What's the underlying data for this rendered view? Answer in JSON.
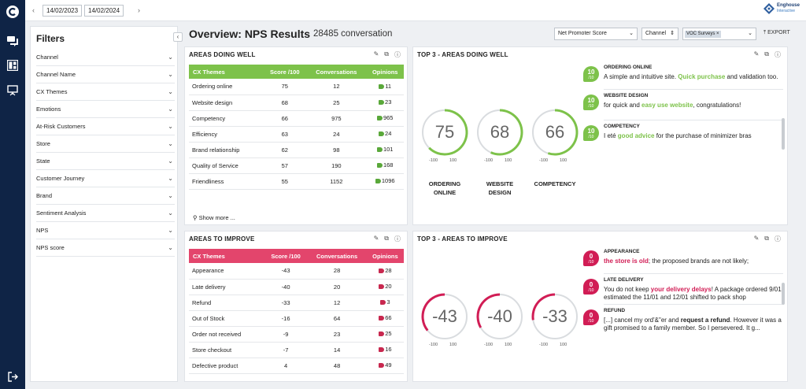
{
  "topbar": {
    "date_from": "14/02/2023",
    "date_to": "14/02/2024",
    "prev_icon": "chevron-left-icon",
    "next_icon": "chevron-right-icon",
    "brand_name": "Enghouse",
    "brand_sub": "Interactive"
  },
  "nav": {
    "items": [
      "app-logo-icon",
      "chat-icon",
      "dashboard-icon",
      "presentation-icon",
      "logout-icon"
    ]
  },
  "filters": {
    "title": "Filters",
    "collapse_glyph": "‹",
    "items": [
      "Channel",
      "Channel Name",
      "CX Themes",
      "Emotions",
      "At-Risk Customers",
      "Store",
      "State",
      "Customer Journey",
      "Brand",
      "Sentiment Analysis",
      "NPS",
      "NPS score"
    ]
  },
  "header": {
    "title": "Overview: NPS Results",
    "count": "28485 conversation",
    "metric_select": "Net Promoter Score",
    "channel_select": "Channel",
    "source_tag": "VOC Surveys",
    "export_label": "EXPORT"
  },
  "doing_well": {
    "title": "AREAS DOING WELL",
    "columns": [
      "CX Themes",
      "Score /100",
      "Conversations",
      "Opinions"
    ],
    "rows": [
      {
        "theme": "Ordering online",
        "score": "75",
        "conv": "12",
        "op": "11"
      },
      {
        "theme": "Website design",
        "score": "68",
        "conv": "25",
        "op": "23"
      },
      {
        "theme": "Competency",
        "score": "66",
        "conv": "975",
        "op": "965"
      },
      {
        "theme": "Efficiency",
        "score": "63",
        "conv": "24",
        "op": "24"
      },
      {
        "theme": "Brand relationship",
        "score": "62",
        "conv": "98",
        "op": "101"
      },
      {
        "theme": "Quality of Service",
        "score": "57",
        "conv": "190",
        "op": "168"
      },
      {
        "theme": "Friendliness",
        "score": "55",
        "conv": "1152",
        "op": "1096"
      }
    ],
    "show_more": "Show more ..."
  },
  "to_improve": {
    "title": "AREAS TO IMPROVE",
    "columns": [
      "CX Themes",
      "Score /100",
      "Conversations",
      "Opinions"
    ],
    "rows": [
      {
        "theme": "Appearance",
        "score": "-43",
        "conv": "28",
        "op": "28"
      },
      {
        "theme": "Late delivery",
        "score": "-40",
        "conv": "20",
        "op": "20"
      },
      {
        "theme": "Refund",
        "score": "-33",
        "conv": "12",
        "op": "3"
      },
      {
        "theme": "Out of Stock",
        "score": "-16",
        "conv": "64",
        "op": "66"
      },
      {
        "theme": "Order not received",
        "score": "-9",
        "conv": "23",
        "op": "25"
      },
      {
        "theme": "Store checkout",
        "score": "-7",
        "conv": "14",
        "op": "16"
      },
      {
        "theme": "Defective product",
        "score": "4",
        "conv": "48",
        "op": "49"
      }
    ]
  },
  "top3_well": {
    "title": "TOP 3 - AREAS DOING WELL",
    "gauges": [
      {
        "value": "75",
        "num": 75,
        "min": "-100",
        "max": "100",
        "label": "ORDERING ONLINE"
      },
      {
        "value": "68",
        "num": 68,
        "min": "-100",
        "max": "100",
        "label": "WEBSITE DESIGN"
      },
      {
        "value": "66",
        "num": 66,
        "min": "-100",
        "max": "100",
        "label": "COMPETENCY"
      }
    ],
    "comments": [
      {
        "badge": "10",
        "den": "/10",
        "title": "ORDERING ONLINE",
        "pre": "A simple and intuitive site. ",
        "hl": "Quick purchase",
        "post": " and validation too."
      },
      {
        "badge": "10",
        "den": "/10",
        "title": "WEBSITE DESIGN",
        "pre": "for quick and ",
        "hl": "easy use website",
        "post": ", congratulations!"
      },
      {
        "badge": "10",
        "den": "/10",
        "title": "COMPETENCY",
        "pre": "I eté ",
        "hl": "good advice",
        "post": " for the purchase of minimizer bras"
      }
    ],
    "accent": "#7dc24a"
  },
  "top3_improve": {
    "title": "TOP 3 - AREAS TO IMPROVE",
    "gauges": [
      {
        "value": "-43",
        "num": -43,
        "min": "-100",
        "max": "100"
      },
      {
        "value": "-40",
        "num": -40,
        "min": "-100",
        "max": "100"
      },
      {
        "value": "-33",
        "num": -33,
        "min": "-100",
        "max": "100"
      }
    ],
    "comments": [
      {
        "badge": "0",
        "den": "/10",
        "title": "APPEARANCE",
        "pre": "",
        "hl": "the store is old",
        "post": "; the proposed brands are not likely;"
      },
      {
        "badge": "0",
        "den": "/10",
        "title": "LATE DELIVERY",
        "pre": "You do not keep ",
        "hl": "your delivery delays",
        "post": "! A package ordered 9/01, estimated the 11/01 and 12/01 shifted to pack shop"
      },
      {
        "badge": "0",
        "den": "/10",
        "title": "REFUND",
        "pre": "[...] cancel my ord'&\"er and ",
        "hl2": "request a refund",
        "post": ". However it was a gift promised to a family member. So I persevered. It g..."
      }
    ],
    "accent": "#d11d55"
  }
}
